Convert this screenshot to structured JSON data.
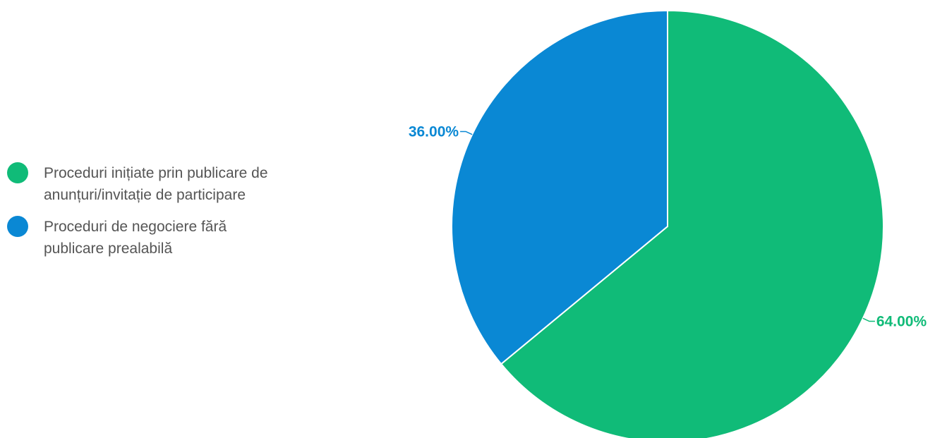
{
  "chart_data": {
    "type": "pie",
    "title": "",
    "legend_position": "left",
    "slices": [
      {
        "label": "Proceduri inițiate prin publicare de anunțuri/invitație de participare",
        "value": 64.0,
        "value_label": "64.00%",
        "color": "#10bb78"
      },
      {
        "label": "Proceduri de negociere fără publicare prealabilă",
        "value": 36.0,
        "value_label": "36.00%",
        "color": "#0a88d4"
      }
    ]
  }
}
